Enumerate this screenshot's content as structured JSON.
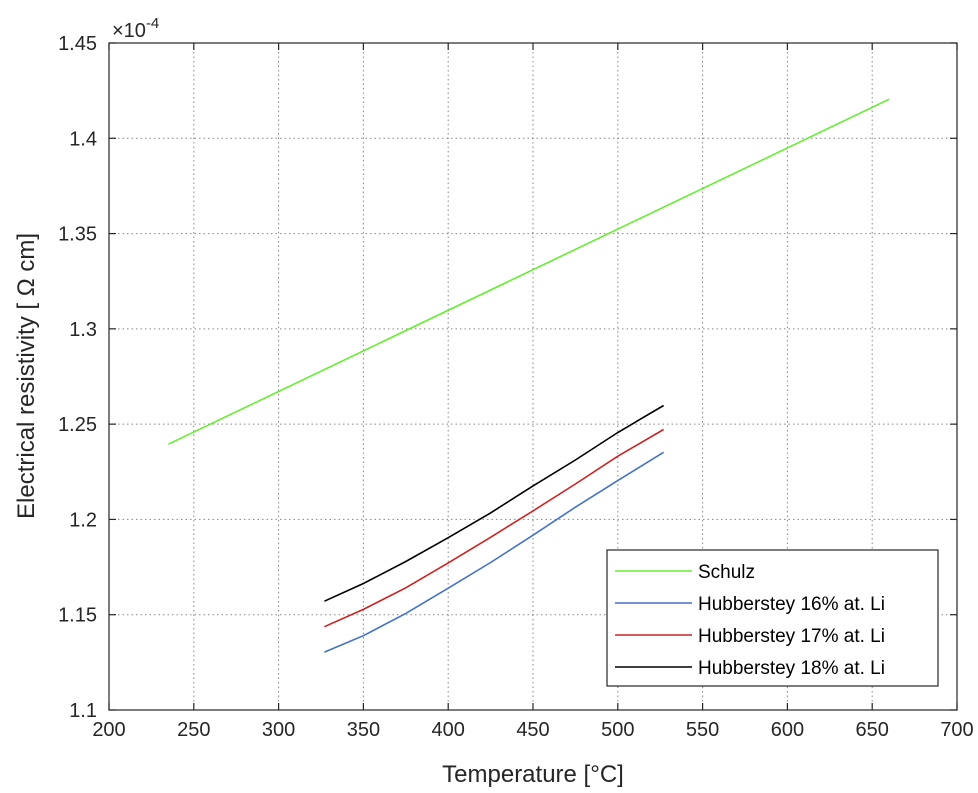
{
  "chart_data": {
    "type": "line",
    "title": "",
    "xlabel": "Temperature [°C]",
    "ylabel": "Electrical resistivity [ Ω cm]",
    "y_multiplier": "×10",
    "y_multiplier_exponent": "-4",
    "xlim": [
      200,
      700
    ],
    "ylim": [
      1.1,
      1.45
    ],
    "x_ticks": [
      200,
      250,
      300,
      350,
      400,
      450,
      500,
      550,
      600,
      650,
      700
    ],
    "y_ticks": [
      1.1,
      1.15,
      1.2,
      1.25,
      1.3,
      1.35,
      1.4,
      1.45
    ],
    "x_tick_labels": [
      "200",
      "250",
      "300",
      "350",
      "400",
      "450",
      "500",
      "550",
      "600",
      "650",
      "700"
    ],
    "y_tick_labels": [
      "1.1",
      "1.15",
      "1.2",
      "1.25",
      "1.3",
      "1.35",
      "1.4",
      "1.45"
    ],
    "grid": true,
    "legend_position": "bottom-right",
    "series": [
      {
        "name": "Schulz",
        "color": "#66ee33",
        "x": [
          235,
          660
        ],
        "y": [
          1.2395,
          1.4205
        ]
      },
      {
        "name": "Hubberstey 16% at. Li",
        "color": "#4472c4",
        "x": [
          327,
          350,
          375,
          400,
          425,
          450,
          475,
          500,
          527
        ],
        "y": [
          1.1304,
          1.139,
          1.1507,
          1.1639,
          1.1774,
          1.1917,
          1.2064,
          1.2204,
          1.2352
        ]
      },
      {
        "name": "Hubberstey 17% at. Li",
        "color": "#cc2222",
        "x": [
          327,
          350,
          375,
          400,
          425,
          450,
          475,
          500,
          527
        ],
        "y": [
          1.1437,
          1.1528,
          1.1641,
          1.1772,
          1.1906,
          1.2045,
          1.2186,
          1.2332,
          1.2472
        ]
      },
      {
        "name": "Hubberstey 18% at. Li",
        "color": "#000000",
        "x": [
          327,
          350,
          375,
          400,
          425,
          450,
          475,
          500,
          527
        ],
        "y": [
          1.1571,
          1.1664,
          1.1779,
          1.1904,
          1.2034,
          1.2176,
          1.2312,
          1.2456,
          1.2598
        ]
      }
    ]
  }
}
